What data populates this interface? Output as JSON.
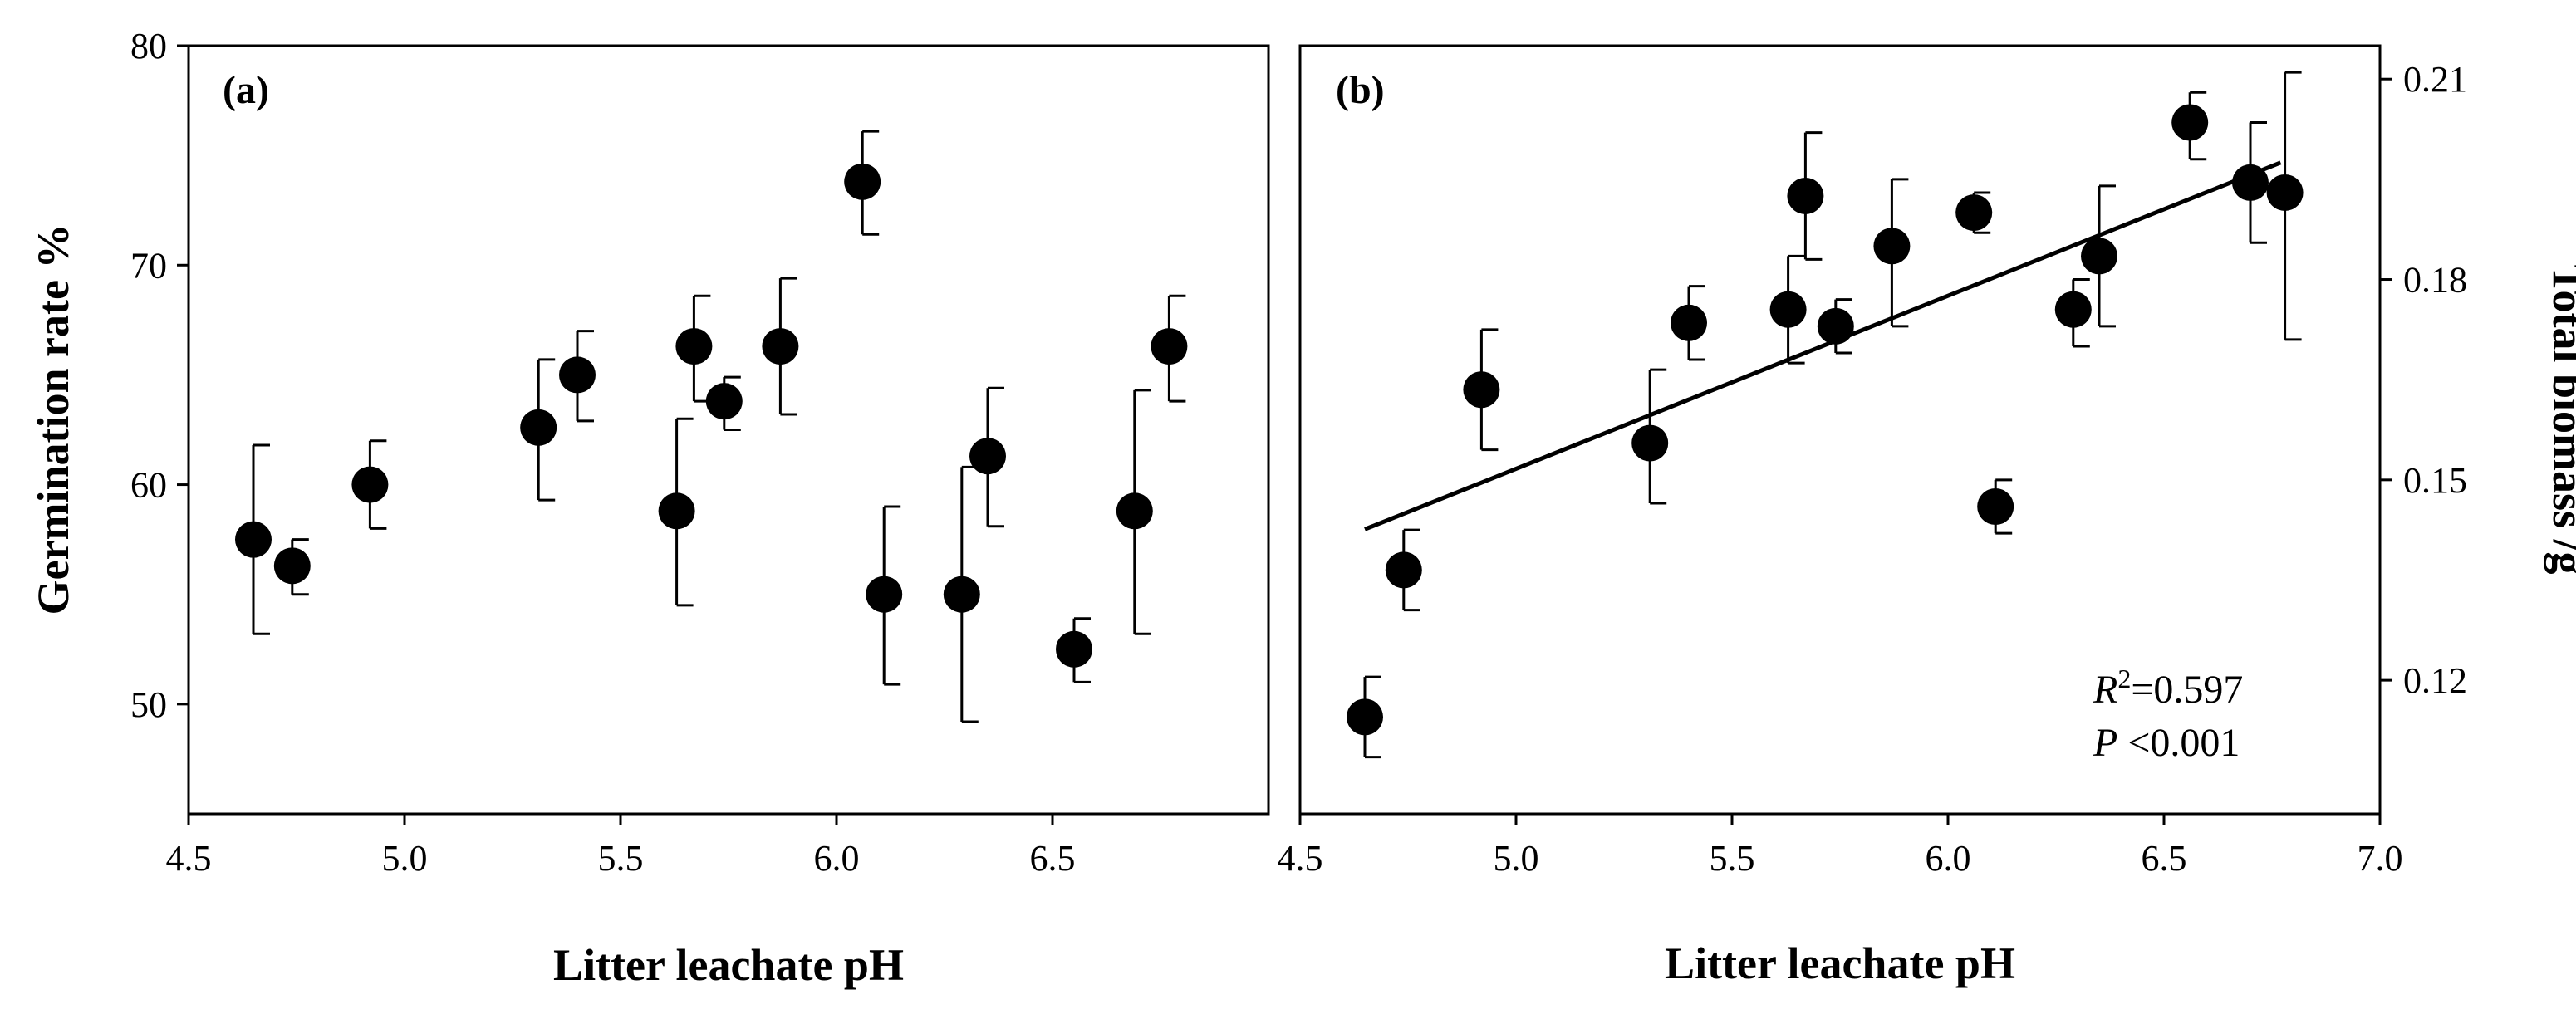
{
  "chart_data": [
    {
      "panel": "(a)",
      "type": "scatter",
      "xlabel": "Litter leachate pH",
      "ylabel": "Germination rate %",
      "xlim": [
        4.5,
        7.0
      ],
      "ylim": [
        45,
        80
      ],
      "xticks": [
        "4.5",
        "5.0",
        "5.5",
        "6.0",
        "6.5"
      ],
      "yticks": [
        "50",
        "60",
        "70",
        "80"
      ],
      "points": [
        {
          "x": 4.65,
          "y": 57.5,
          "lo": 53.2,
          "hi": 61.8
        },
        {
          "x": 4.74,
          "y": 56.3,
          "lo": 55.0,
          "hi": 57.5
        },
        {
          "x": 4.92,
          "y": 60.0,
          "lo": 58.0,
          "hi": 62.0
        },
        {
          "x": 5.31,
          "y": 62.6,
          "lo": 59.3,
          "hi": 65.7
        },
        {
          "x": 5.4,
          "y": 65.0,
          "lo": 62.9,
          "hi": 67.0
        },
        {
          "x": 5.63,
          "y": 58.8,
          "lo": 54.5,
          "hi": 63.0
        },
        {
          "x": 5.67,
          "y": 66.3,
          "lo": 63.8,
          "hi": 68.6
        },
        {
          "x": 5.74,
          "y": 63.8,
          "lo": 62.5,
          "hi": 64.9
        },
        {
          "x": 5.87,
          "y": 66.3,
          "lo": 63.2,
          "hi": 69.4
        },
        {
          "x": 6.06,
          "y": 73.8,
          "lo": 71.4,
          "hi": 76.1
        },
        {
          "x": 6.11,
          "y": 55.0,
          "lo": 50.9,
          "hi": 59.0
        },
        {
          "x": 6.29,
          "y": 55.0,
          "lo": 49.2,
          "hi": 60.8
        },
        {
          "x": 6.35,
          "y": 61.3,
          "lo": 58.1,
          "hi": 64.4
        },
        {
          "x": 6.55,
          "y": 52.5,
          "lo": 51.0,
          "hi": 53.9
        },
        {
          "x": 6.69,
          "y": 58.8,
          "lo": 53.2,
          "hi": 64.3
        },
        {
          "x": 6.77,
          "y": 66.3,
          "lo": 63.8,
          "hi": 68.6
        }
      ]
    },
    {
      "panel": "(b)",
      "type": "scatter",
      "xlabel": "Litter leachate pH",
      "ylabel": "Total biomass /g",
      "xlim": [
        4.5,
        7.0
      ],
      "ylim": [
        0.1,
        0.215
      ],
      "xticks": [
        "4.5",
        "5.0",
        "5.5",
        "6.0",
        "6.5",
        "7.0"
      ],
      "yticks": [
        "0.12",
        "0.15",
        "0.18",
        "0.21"
      ],
      "regression": {
        "x": [
          4.65,
          6.77
        ],
        "y": [
          0.1426,
          0.1975
        ]
      },
      "stats": {
        "r2_prefix": "R",
        "r2_sup": "2",
        "r2_value": "=0.597",
        "p_prefix": "P",
        "p_value": " <0.001"
      },
      "points": [
        {
          "x": 4.65,
          "y": 0.1145,
          "lo": 0.1085,
          "hi": 0.1205
        },
        {
          "x": 4.74,
          "y": 0.1365,
          "lo": 0.1305,
          "hi": 0.1425
        },
        {
          "x": 4.92,
          "y": 0.1635,
          "lo": 0.1545,
          "hi": 0.1725
        },
        {
          "x": 5.31,
          "y": 0.1555,
          "lo": 0.1465,
          "hi": 0.1665
        },
        {
          "x": 5.4,
          "y": 0.1735,
          "lo": 0.168,
          "hi": 0.179
        },
        {
          "x": 5.63,
          "y": 0.1755,
          "lo": 0.1675,
          "hi": 0.1835
        },
        {
          "x": 5.67,
          "y": 0.1925,
          "lo": 0.183,
          "hi": 0.202
        },
        {
          "x": 5.74,
          "y": 0.173,
          "lo": 0.169,
          "hi": 0.177
        },
        {
          "x": 5.87,
          "y": 0.185,
          "lo": 0.173,
          "hi": 0.195
        },
        {
          "x": 6.06,
          "y": 0.19,
          "lo": 0.187,
          "hi": 0.193
        },
        {
          "x": 6.11,
          "y": 0.146,
          "lo": 0.142,
          "hi": 0.15
        },
        {
          "x": 6.29,
          "y": 0.1755,
          "lo": 0.17,
          "hi": 0.18
        },
        {
          "x": 6.35,
          "y": 0.1835,
          "lo": 0.173,
          "hi": 0.194
        },
        {
          "x": 6.56,
          "y": 0.2035,
          "lo": 0.198,
          "hi": 0.208
        },
        {
          "x": 6.7,
          "y": 0.1945,
          "lo": 0.1855,
          "hi": 0.2035
        },
        {
          "x": 6.78,
          "y": 0.193,
          "lo": 0.171,
          "hi": 0.211
        }
      ]
    }
  ]
}
